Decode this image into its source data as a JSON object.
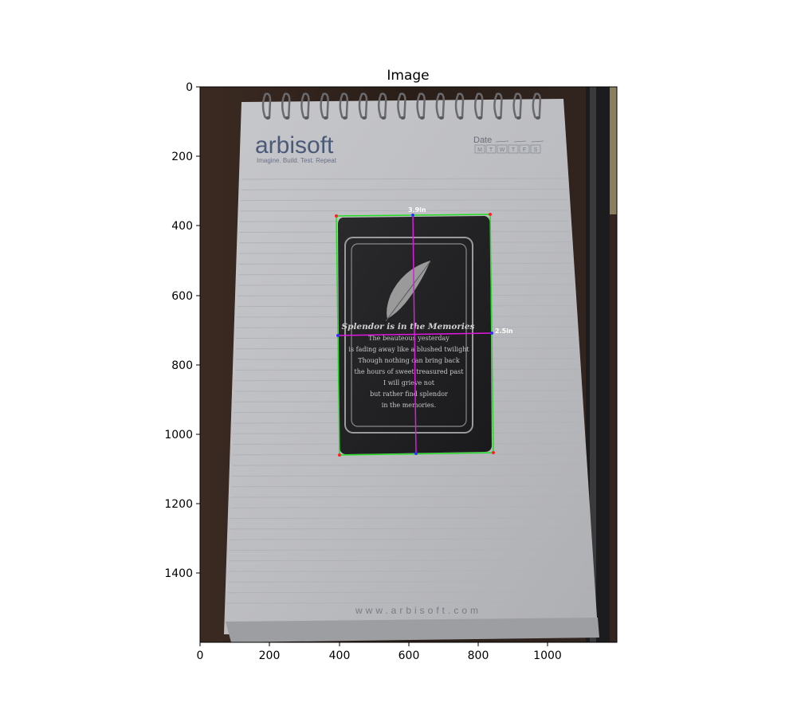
{
  "figure": {
    "title": "Image",
    "x_ticks": [
      "0",
      "200",
      "400",
      "600",
      "800",
      "1000"
    ],
    "y_ticks": [
      "0",
      "200",
      "400",
      "600",
      "800",
      "1000",
      "1200",
      "1400"
    ]
  },
  "photo": {
    "brand_name": "arbisoft",
    "brand_tagline": "Imagine. Build. Test. Repeat",
    "date_label": "Date",
    "weekdays": [
      "M",
      "T",
      "W",
      "T",
      "F",
      "S"
    ],
    "footer_url": "www.arbisoft.com",
    "card": {
      "heading": "Splendor is in the Memories",
      "poem_lines": [
        "The beauteous yesterday",
        "is fading away like a blushed twilight",
        "Though nothing can bring back",
        "the hours of sweet treasured past",
        "I will grieve not",
        "but rather find splendor",
        "in the memories."
      ]
    },
    "measurements": {
      "height_label": "3.9in",
      "width_label": "2.5in"
    },
    "colors": {
      "outline": "#22dd22",
      "midlines": "#e018e0",
      "corner_points": "#ff2020",
      "midpoints": "#3030ff",
      "label_text": "#ffffff"
    }
  }
}
